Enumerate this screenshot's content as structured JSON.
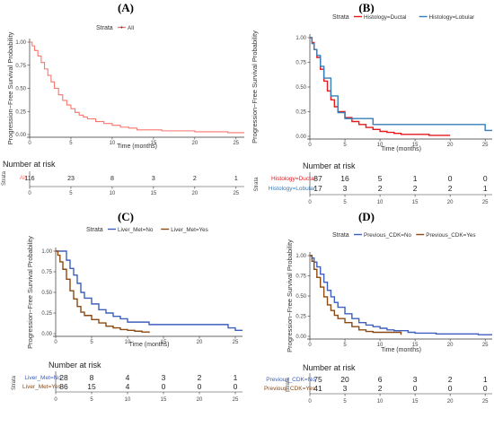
{
  "chart_data": [
    {
      "type": "line",
      "panel": "(A)",
      "ylabel": "Progression−Free Survival Probability",
      "xlabel": "Time (months)",
      "xlim": [
        0,
        26
      ],
      "ylim": [
        0,
        1
      ],
      "xticks": [
        0,
        5,
        10,
        15,
        20,
        25
      ],
      "yticks": [
        0.0,
        0.25,
        0.5,
        0.75,
        1.0
      ],
      "legend": {
        "title": "Strata",
        "placement": "top-center"
      },
      "series": [
        {
          "name": "All",
          "color": "#f8766d",
          "x": [
            0,
            0.3,
            0.6,
            1,
            1.4,
            1.8,
            2.2,
            2.6,
            3,
            3.5,
            4,
            4.5,
            5,
            5.5,
            6,
            6.5,
            7,
            8,
            9,
            10,
            11,
            12,
            13,
            14,
            16,
            18,
            20,
            22,
            24,
            25,
            26
          ],
          "y": [
            1.0,
            0.96,
            0.91,
            0.85,
            0.78,
            0.71,
            0.64,
            0.57,
            0.5,
            0.43,
            0.37,
            0.32,
            0.28,
            0.24,
            0.21,
            0.19,
            0.17,
            0.14,
            0.12,
            0.1,
            0.08,
            0.07,
            0.05,
            0.05,
            0.04,
            0.04,
            0.03,
            0.03,
            0.02,
            0.02,
            0.02
          ]
        }
      ],
      "risk_table": {
        "title": "Number at risk",
        "strata_label": "Strata",
        "times": [
          0,
          5,
          10,
          15,
          20,
          25
        ],
        "rows": [
          {
            "name": "All",
            "color": "#f8766d",
            "values": [
              "116",
              "23",
              "8",
              "3",
              "2",
              "1"
            ]
          }
        ]
      }
    },
    {
      "type": "line",
      "panel": "(B)",
      "ylabel": "Progression−Free Survival Probability",
      "xlabel": "Time (months)",
      "xlim": [
        0,
        26
      ],
      "ylim": [
        0,
        1
      ],
      "xticks": [
        0,
        5,
        10,
        15,
        20,
        25
      ],
      "yticks": [
        0.0,
        0.25,
        0.5,
        0.75,
        1.0
      ],
      "legend": {
        "title": "Strata",
        "placement": "top-center"
      },
      "series": [
        {
          "name": "Histology=Ductal",
          "color": "#e41a1c",
          "x": [
            0,
            0.3,
            0.6,
            1,
            1.5,
            2,
            2.5,
            3,
            3.5,
            4,
            5,
            6,
            7,
            8,
            9,
            10,
            11,
            12,
            13,
            15,
            17,
            20
          ],
          "y": [
            1.0,
            0.95,
            0.88,
            0.8,
            0.68,
            0.56,
            0.46,
            0.37,
            0.3,
            0.25,
            0.19,
            0.15,
            0.12,
            0.09,
            0.07,
            0.05,
            0.04,
            0.03,
            0.02,
            0.02,
            0.01,
            0.01
          ]
        },
        {
          "name": "Histology=Lobular",
          "color": "#377eb8",
          "x": [
            0,
            0.3,
            0.6,
            1,
            1.5,
            2,
            3,
            4,
            5,
            8,
            9,
            12,
            25,
            26
          ],
          "y": [
            1.0,
            0.94,
            0.88,
            0.82,
            0.71,
            0.59,
            0.41,
            0.24,
            0.18,
            0.18,
            0.12,
            0.12,
            0.06,
            0.06
          ]
        }
      ],
      "risk_table": {
        "title": "Number at risk",
        "strata_label": "Strata",
        "times": [
          0,
          5,
          10,
          15,
          20,
          25
        ],
        "rows": [
          {
            "name": "Histology=Ductal",
            "color": "#e41a1c",
            "values": [
              "87",
              "16",
              "5",
              "1",
              "0",
              "0"
            ]
          },
          {
            "name": "Histology=Lobular",
            "color": "#377eb8",
            "values": [
              "17",
              "3",
              "2",
              "2",
              "2",
              "1"
            ]
          }
        ]
      }
    },
    {
      "type": "line",
      "panel": "(C)",
      "ylabel": "Progression−Free Survival Probability",
      "xlabel": "Time (months)",
      "xlim": [
        0,
        26
      ],
      "ylim": [
        0,
        1
      ],
      "xticks": [
        0,
        5,
        10,
        15,
        20,
        25
      ],
      "yticks": [
        0.0,
        0.25,
        0.5,
        0.75,
        1.0
      ],
      "legend": {
        "title": "Strata",
        "placement": "top-center"
      },
      "series": [
        {
          "name": "Liver_Met=No",
          "color": "#3f5fbf",
          "x": [
            0,
            1,
            1.5,
            2,
            2.5,
            3,
            3.5,
            4,
            5,
            6,
            7,
            8,
            9,
            10,
            12,
            13,
            15,
            20,
            24,
            25,
            26
          ],
          "y": [
            1.0,
            1.0,
            0.89,
            0.79,
            0.71,
            0.61,
            0.5,
            0.43,
            0.36,
            0.29,
            0.25,
            0.21,
            0.18,
            0.14,
            0.14,
            0.11,
            0.11,
            0.11,
            0.07,
            0.04,
            0.04
          ]
        },
        {
          "name": "Liver_Met=Yes",
          "color": "#8c4a12",
          "x": [
            0,
            0.3,
            0.6,
            1,
            1.5,
            2,
            2.5,
            3,
            3.5,
            4,
            5,
            6,
            7,
            8,
            9,
            10,
            11,
            12,
            13
          ],
          "y": [
            1.0,
            0.95,
            0.87,
            0.78,
            0.66,
            0.52,
            0.42,
            0.33,
            0.26,
            0.22,
            0.17,
            0.13,
            0.09,
            0.07,
            0.05,
            0.04,
            0.03,
            0.02,
            0.01
          ]
        }
      ],
      "risk_table": {
        "title": "Number at risk",
        "strata_label": "Strata",
        "times": [
          0,
          5,
          10,
          15,
          20,
          25
        ],
        "rows": [
          {
            "name": "Liver_Met=No",
            "color": "#3f5fbf",
            "values": [
              "28",
              "8",
              "4",
              "3",
              "2",
              "1"
            ]
          },
          {
            "name": "Liver_Met=Yes",
            "color": "#8c4a12",
            "values": [
              "86",
              "15",
              "4",
              "0",
              "0",
              "0"
            ]
          }
        ]
      }
    },
    {
      "type": "line",
      "panel": "(D)",
      "ylabel": "Progression−Free Survival Probability",
      "xlabel": "Time (months)",
      "xlim": [
        0,
        26
      ],
      "ylim": [
        0,
        1
      ],
      "xticks": [
        0,
        5,
        10,
        15,
        20,
        25
      ],
      "yticks": [
        0.0,
        0.25,
        0.5,
        0.75,
        1.0
      ],
      "legend": {
        "title": "Strata",
        "placement": "top-center"
      },
      "series": [
        {
          "name": "Previous_CDK=No",
          "color": "#3f5fbf",
          "x": [
            0,
            0.3,
            0.6,
            1,
            1.5,
            2,
            2.5,
            3,
            3.5,
            4,
            5,
            6,
            7,
            8,
            9,
            10,
            11,
            12,
            14,
            15,
            18,
            20,
            24,
            26
          ],
          "y": [
            1.0,
            0.97,
            0.92,
            0.86,
            0.77,
            0.67,
            0.57,
            0.49,
            0.42,
            0.36,
            0.28,
            0.22,
            0.17,
            0.14,
            0.12,
            0.1,
            0.08,
            0.07,
            0.05,
            0.04,
            0.03,
            0.03,
            0.02,
            0.02
          ]
        },
        {
          "name": "Previous_CDK=Yes",
          "color": "#8c4a12",
          "x": [
            0,
            0.3,
            0.6,
            1,
            1.5,
            2,
            2.5,
            3,
            3.5,
            4,
            5,
            6,
            7,
            8,
            9,
            10,
            12,
            13
          ],
          "y": [
            1.0,
            0.93,
            0.83,
            0.73,
            0.61,
            0.49,
            0.39,
            0.32,
            0.26,
            0.22,
            0.17,
            0.12,
            0.08,
            0.06,
            0.05,
            0.05,
            0.05,
            0.02
          ]
        }
      ],
      "risk_table": {
        "title": "Number at risk",
        "strata_label": "Strata",
        "times": [
          0,
          5,
          10,
          15,
          20,
          25
        ],
        "rows": [
          {
            "name": "Previous_CDK=No",
            "color": "#3f5fbf",
            "values": [
              "75",
              "20",
              "6",
              "3",
              "2",
              "1"
            ]
          },
          {
            "name": "Previous_CDK=Yes",
            "color": "#8c4a12",
            "values": [
              "41",
              "3",
              "2",
              "0",
              "0",
              "0"
            ]
          }
        ]
      }
    }
  ]
}
